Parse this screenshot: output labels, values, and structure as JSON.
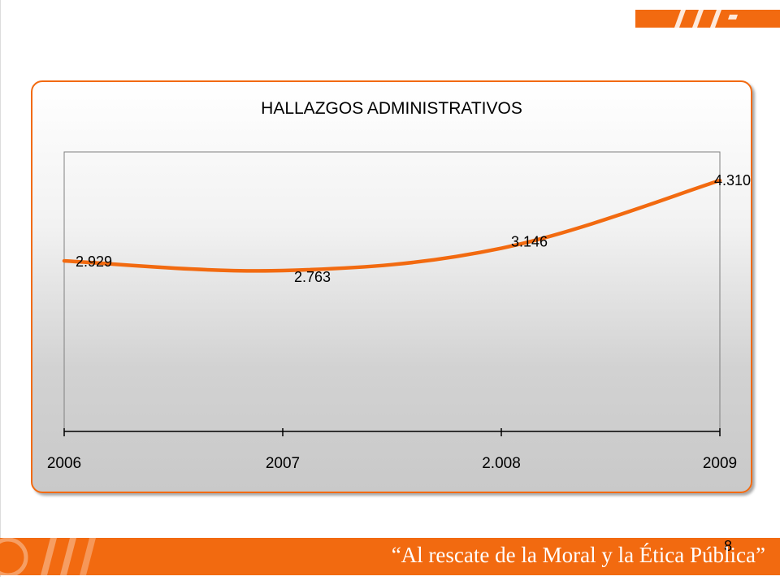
{
  "slide": {
    "quote": "“Al rescate de la Moral y la Ética Pública”",
    "page_number": "8"
  },
  "colors": {
    "accent": "#f26a10",
    "line": "#f26a10",
    "text": "#000000"
  },
  "chart_data": {
    "type": "line",
    "title": "HALLAZGOS ADMINISTRATIVOS",
    "categories": [
      "2006",
      "2007",
      "2.008",
      "2009"
    ],
    "series": [
      {
        "values": [
          2929,
          2763,
          3146,
          4310
        ]
      }
    ],
    "data_labels": [
      "2.929",
      "2.763",
      "3.146",
      "4.310"
    ],
    "ylim": [
      0,
      4800
    ],
    "smooth": true,
    "grid": false,
    "legend": "none",
    "xlabel": "",
    "ylabel": ""
  }
}
